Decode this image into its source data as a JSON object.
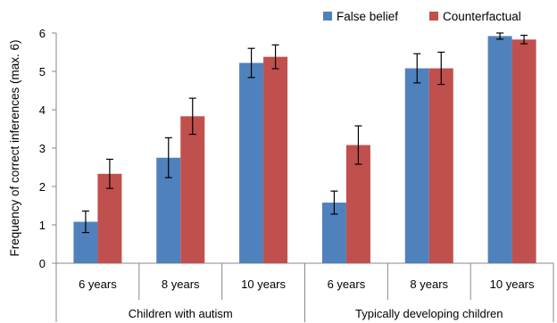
{
  "chart_data": {
    "type": "bar",
    "title": "",
    "xlabel": "",
    "ylabel": "Frequency of correct inferences (max. 6)",
    "ylim": [
      0,
      6
    ],
    "yticks": [
      0,
      1,
      2,
      3,
      4,
      5,
      6
    ],
    "grid": false,
    "legend_position": "top-right",
    "groups": [
      {
        "label": "Children with autism",
        "categories": [
          "6 years",
          "8 years",
          "10 years"
        ]
      },
      {
        "label": "Typically developing children",
        "categories": [
          "6 years",
          "8 years",
          "10 years"
        ]
      }
    ],
    "categories": [
      "6 years",
      "8 years",
      "10 years",
      "6 years",
      "8 years",
      "10 years"
    ],
    "series": [
      {
        "name": "False belief",
        "color": "#4f81bd",
        "values": [
          1.08,
          2.75,
          5.22,
          1.58,
          5.08,
          5.92
        ],
        "error": [
          0.28,
          0.52,
          0.38,
          0.3,
          0.38,
          0.08
        ]
      },
      {
        "name": "Counterfactual",
        "color": "#c0504d",
        "values": [
          2.33,
          3.83,
          5.38,
          3.08,
          5.08,
          5.83
        ],
        "error": [
          0.38,
          0.47,
          0.31,
          0.5,
          0.42,
          0.11
        ]
      }
    ]
  }
}
